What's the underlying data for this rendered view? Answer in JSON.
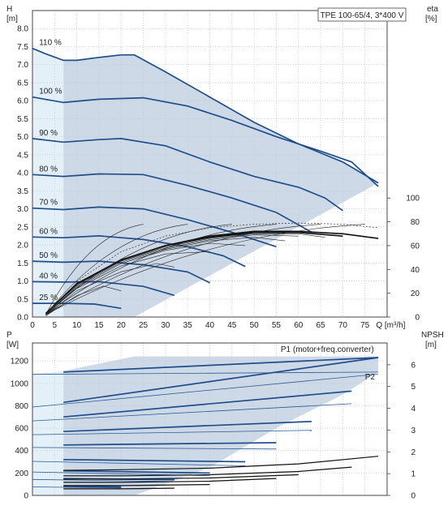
{
  "chart_data": [
    {
      "type": "line",
      "title": "TPE 100-65/4, 3*400 V",
      "ylabel": "H",
      "yunit": "[m]",
      "xlabel": "Q [m³/h]",
      "y2label": "eta",
      "y2unit": "[%]",
      "xlim": [
        0,
        80
      ],
      "ylim": [
        0,
        8.5
      ],
      "y2lim": [
        0,
        100
      ],
      "x_ticks": [
        "0",
        "5",
        "10",
        "15",
        "20",
        "25",
        "30",
        "35",
        "40",
        "45",
        "50",
        "55",
        "60",
        "65",
        "70",
        "75",
        "Q [m³/h]"
      ],
      "y_ticks": [
        "0.0",
        "0.5",
        "1.0",
        "1.5",
        "2.0",
        "2.5",
        "3.0",
        "3.5",
        "4.0",
        "4.5",
        "5.0",
        "5.5",
        "6.0",
        "6.5",
        "7.0",
        "7.5",
        "8.0"
      ],
      "y2_ticks": [
        "0",
        "20",
        "40",
        "60",
        "80",
        "100"
      ],
      "grid": true,
      "series": [
        {
          "name": "110 %",
          "x": [
            0,
            3,
            7,
            10,
            15,
            20,
            23,
            30,
            40,
            50,
            60,
            70,
            78
          ],
          "y": [
            7.45,
            7.3,
            7.12,
            7.12,
            7.2,
            7.27,
            7.27,
            6.8,
            6.1,
            5.4,
            4.8,
            4.3,
            3.72
          ]
        },
        {
          "name": "100 %",
          "x": [
            0,
            7,
            15,
            25,
            35,
            45,
            55,
            65,
            72,
            78
          ],
          "y": [
            6.1,
            5.95,
            6.04,
            6.08,
            5.85,
            5.45,
            5.0,
            4.6,
            4.3,
            3.62
          ]
        },
        {
          "name": "90 %",
          "x": [
            0,
            7,
            15,
            20,
            30,
            40,
            50,
            60,
            66,
            70
          ],
          "y": [
            4.95,
            4.85,
            4.92,
            4.95,
            4.75,
            4.3,
            3.9,
            3.6,
            3.3,
            2.95
          ]
        },
        {
          "name": "80 %",
          "x": [
            0,
            7,
            15,
            25,
            35,
            45,
            55,
            63
          ],
          "y": [
            3.95,
            3.9,
            3.97,
            3.95,
            3.65,
            3.3,
            2.9,
            2.35
          ]
        },
        {
          "name": "70 %",
          "x": [
            0,
            7,
            15,
            25,
            35,
            45,
            55
          ],
          "y": [
            3.02,
            2.98,
            3.05,
            3.0,
            2.7,
            2.35,
            1.95
          ]
        },
        {
          "name": "60 %",
          "x": [
            0,
            7,
            15,
            25,
            35,
            43,
            48
          ],
          "y": [
            2.22,
            2.2,
            2.25,
            2.15,
            1.95,
            1.7,
            1.4
          ]
        },
        {
          "name": "50 %",
          "x": [
            0,
            7,
            15,
            25,
            35,
            40
          ],
          "y": [
            1.55,
            1.52,
            1.55,
            1.45,
            1.25,
            0.95
          ]
        },
        {
          "name": "40 %",
          "x": [
            0,
            7,
            15,
            25,
            32
          ],
          "y": [
            0.98,
            0.97,
            0.98,
            0.85,
            0.6
          ]
        },
        {
          "name": "25 %",
          "x": [
            0,
            7,
            14,
            20
          ],
          "y": [
            0.38,
            0.38,
            0.36,
            0.24
          ]
        }
      ],
      "eta_series": [
        {
          "x": [
            3,
            10,
            20,
            30,
            40,
            50,
            60,
            70,
            78
          ],
          "y2": [
            3,
            28,
            48,
            60,
            68,
            72,
            72,
            70,
            66
          ]
        },
        {
          "x": [
            3,
            10,
            20,
            30,
            40,
            50,
            60,
            70
          ],
          "y2": [
            3,
            28,
            48,
            60,
            67,
            71,
            71,
            68
          ]
        },
        {
          "x": [
            3,
            10,
            20,
            30,
            40,
            50,
            60,
            66
          ],
          "y2": [
            3,
            27,
            47,
            59,
            66,
            70,
            70,
            67
          ]
        },
        {
          "x": [
            3,
            10,
            20,
            30,
            40,
            50,
            60
          ],
          "y2": [
            3,
            27,
            47,
            58,
            65,
            69,
            68
          ]
        },
        {
          "x": [
            3,
            10,
            20,
            30,
            40,
            50,
            57
          ],
          "y2": [
            2,
            26,
            46,
            57,
            64,
            67,
            64
          ]
        },
        {
          "x": [
            3,
            10,
            20,
            30,
            40,
            48
          ],
          "y2": [
            2,
            25,
            45,
            56,
            62,
            60
          ]
        },
        {
          "x": [
            3,
            10,
            20,
            30,
            40
          ],
          "y2": [
            2,
            24,
            43,
            53,
            55
          ]
        },
        {
          "x": [
            3,
            10,
            20,
            28,
            32
          ],
          "y2": [
            1,
            22,
            38,
            45,
            42
          ]
        },
        {
          "x": [
            3,
            10,
            16,
            20
          ],
          "y2": [
            1,
            18,
            26,
            22
          ]
        }
      ],
      "eta_dashed": [
        {
          "x": [
            10,
            20,
            30,
            40,
            50,
            60,
            70,
            78
          ],
          "y2": [
            30,
            55,
            68,
            75,
            78,
            79,
            78,
            75
          ]
        }
      ]
    },
    {
      "type": "line",
      "ylabel": "P",
      "yunit": "[W]",
      "y2label": "NPSH",
      "y2unit": "[m]",
      "xlim": [
        0,
        80
      ],
      "ylim": [
        0,
        1360
      ],
      "y2lim": [
        0,
        7
      ],
      "y_ticks": [
        "0",
        "200",
        "400",
        "600",
        "800",
        "1000",
        "1200"
      ],
      "y2_ticks": [
        "0",
        "1",
        "2",
        "3",
        "4",
        "5",
        "6"
      ],
      "grid": true,
      "annotations": [
        "P1 (motor+freq.converter)",
        "P2"
      ],
      "series": [
        {
          "name": "P1 (motor+freq.converter)",
          "x": [
            7,
            78
          ],
          "y": [
            1100,
            1230
          ]
        },
        {
          "name": "P2",
          "x": [
            0,
            78
          ],
          "y": [
            1080,
            1100
          ]
        }
      ],
      "p1_curves": [
        {
          "x": [
            7,
            78
          ],
          "y": [
            830,
            1230
          ]
        },
        {
          "x": [
            7,
            72
          ],
          "y": [
            700,
            930
          ]
        },
        {
          "x": [
            7,
            63
          ],
          "y": [
            570,
            660
          ]
        },
        {
          "x": [
            7,
            55
          ],
          "y": [
            450,
            470
          ]
        },
        {
          "x": [
            7,
            48
          ],
          "y": [
            320,
            300
          ]
        },
        {
          "x": [
            7,
            40
          ],
          "y": [
            220,
            200
          ]
        },
        {
          "x": [
            7,
            32
          ],
          "y": [
            150,
            140
          ]
        },
        {
          "x": [
            7,
            20
          ],
          "y": [
            80,
            75
          ]
        }
      ],
      "npsh_series": [
        {
          "x": [
            7,
            20,
            40,
            60,
            78
          ],
          "y2": [
            1.15,
            1.18,
            1.25,
            1.45,
            1.8
          ]
        },
        {
          "x": [
            7,
            20,
            40,
            60,
            72
          ],
          "y2": [
            0.9,
            0.9,
            0.95,
            1.1,
            1.3
          ]
        },
        {
          "x": [
            7,
            20,
            40,
            60
          ],
          "y2": [
            0.75,
            0.75,
            0.8,
            0.95
          ]
        },
        {
          "x": [
            7,
            20,
            40,
            55
          ],
          "y2": [
            0.6,
            0.6,
            0.65,
            0.78
          ]
        },
        {
          "x": [
            7,
            20,
            40
          ],
          "y2": [
            0.45,
            0.45,
            0.5
          ]
        },
        {
          "x": [
            7,
            20,
            32
          ],
          "y2": [
            0.3,
            0.3,
            0.33
          ]
        }
      ]
    }
  ]
}
